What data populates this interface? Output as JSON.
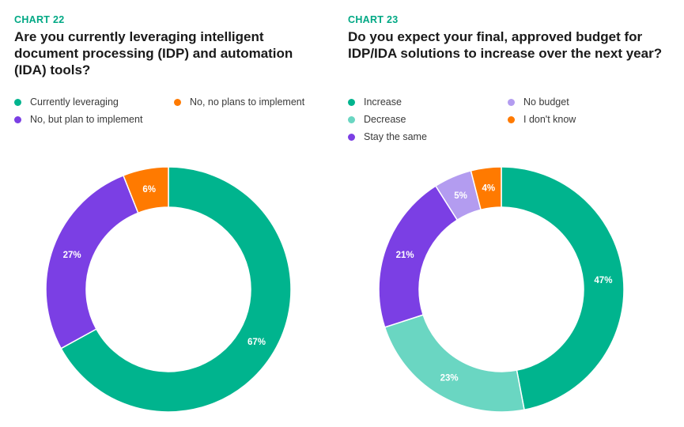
{
  "chart_data": [
    {
      "type": "pie",
      "chart_number": "CHART 22",
      "title": "Are you currently leveraging intelligent document processing (IDP) and automation (IDA) tools?",
      "title_lines": [
        "Are you currently leveraging intelligent",
        "document processing (IDP) and automation",
        "(IDA) tools?"
      ],
      "categories": [
        "Currently leveraging",
        "No, but plan to implement",
        "No, no plans to implement"
      ],
      "values": [
        67,
        27,
        6
      ],
      "value_labels": [
        "67%",
        "27%",
        "6%"
      ],
      "colors": [
        "#00b48e",
        "#7b3fe4",
        "#ff7a00"
      ],
      "donut": true
    },
    {
      "type": "pie",
      "chart_number": "CHART 23",
      "title": "Do you expect your final, approved budget for IDP/IDA solutions to increase over the next year?",
      "title_lines": [
        "Do you expect your final, approved budget for",
        "IDP/IDA solutions to increase over the next year?"
      ],
      "categories": [
        "Increase",
        "Decrease",
        "Stay the same",
        "No budget",
        "I don't know"
      ],
      "values": [
        47,
        23,
        21,
        5,
        4
      ],
      "value_labels": [
        "47%",
        "23%",
        "21%",
        "5%",
        "4%"
      ],
      "colors": [
        "#00b48e",
        "#6ad6c2",
        "#7b3fe4",
        "#b39cf0",
        "#ff7a00"
      ],
      "donut": true
    }
  ]
}
